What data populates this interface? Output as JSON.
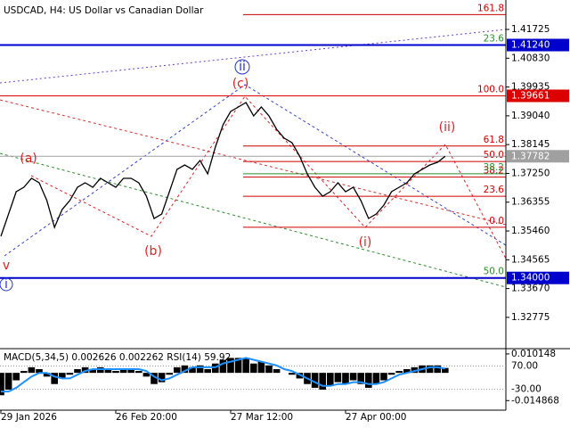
{
  "chart_data": [
    {
      "type": "line",
      "title": "USDCAD, H4:  US Dollar vs Canadian Dollar",
      "categories": [
        "29 Jan 2026",
        null,
        null,
        null,
        null,
        null,
        null,
        null,
        null,
        null,
        null,
        null,
        null,
        null,
        null,
        "26 Feb 20:00",
        null,
        null,
        null,
        null,
        null,
        null,
        null,
        null,
        null,
        null,
        null,
        null,
        null,
        null,
        "27 Mar 12:00",
        null,
        null,
        null,
        null,
        null,
        null,
        null,
        null,
        null,
        null,
        null,
        null,
        null,
        null,
        "27 Apr 00:00",
        null,
        null,
        null,
        null,
        null,
        null,
        null,
        null,
        null,
        null,
        null,
        null,
        null
      ],
      "series": [
        {
          "color": "#000000",
          "values": [
            1.35296,
            1.35989,
            1.36682,
            1.3682,
            1.37097,
            1.36959,
            1.36405,
            1.35573,
            1.36128,
            1.36405,
            1.3682,
            1.36959,
            1.3682,
            1.37097,
            1.36959,
            1.3682,
            1.37097,
            1.37097,
            1.36959,
            1.36543,
            1.3585,
            1.35989,
            1.36682,
            1.37375,
            1.37513,
            1.37375,
            1.37652,
            1.37236,
            1.38067,
            1.3876,
            1.39176,
            1.39314,
            1.39453,
            1.39037,
            1.39314,
            1.39037,
            1.38621,
            1.38344,
            1.38206,
            1.3779,
            1.37236,
            1.3682,
            1.36543,
            1.36682,
            1.36959,
            1.36682,
            1.3682,
            1.36405,
            1.3585,
            1.35989,
            1.36266,
            1.36682,
            1.3682,
            1.36959,
            1.37236,
            1.37375,
            1.37513,
            1.37596,
            1.37782
          ]
        }
      ],
      "ylim": [
        1.3183,
        1.4264
      ],
      "yticks": [
        1.41725,
        {
          "value": 1.4083,
          "label": "1.40830"
        },
        1.39935,
        {
          "value": 1.3904,
          "label": "1.39040"
        },
        1.38145,
        {
          "value": 1.3725,
          "label": "1.37250"
        },
        1.36355,
        {
          "value": 1.3546,
          "label": "1.35460"
        },
        1.34565,
        {
          "value": 1.3367,
          "label": "1.33670"
        },
        1.32775
      ],
      "levels": [
        {
          "value": 1.4124,
          "label": "1.41240",
          "color": "#0000cc"
        },
        {
          "value": 1.39661,
          "label": "1.39661",
          "color": "#dd0000"
        },
        {
          "value": 1.37782,
          "label": "1.37782",
          "color": "#a0a0a0"
        },
        {
          "value": 1.34,
          "label": "1.34000",
          "color": "#0000cc"
        }
      ],
      "fib_levels": [
        {
          "label": "161.8",
          "price": 1.42187,
          "color": "#cc0000"
        },
        {
          "label": "100.0",
          "price": 1.39661,
          "color": "#cc0000"
        },
        {
          "label": "61.8",
          "price": 1.381,
          "color": "#cc0000"
        },
        {
          "label": "50.0",
          "price": 1.37618,
          "color": "#cc0000"
        },
        {
          "label": "38.2",
          "price": 1.37135,
          "color": "#cc0000"
        },
        {
          "label": "23.6",
          "price": 1.36539,
          "color": "#cc0000"
        },
        {
          "label": "0.0",
          "price": 1.35574,
          "color": "#cc0000"
        },
        {
          "label": "23.6",
          "price": 1.4124,
          "color": "#2e8b2e"
        },
        {
          "label": "38.2",
          "price": 1.3724,
          "color": "#2e8b2e"
        },
        {
          "label": "50.0",
          "price": 1.34,
          "color": "#2e8b2e"
        }
      ],
      "wave_labels": [
        "(a)",
        "(b)",
        "(c)",
        "ii",
        "v",
        "i",
        "(i)",
        "(ii)"
      ]
    },
    {
      "type": "macd",
      "title": "MACD(5,34,5) 0.002626 0.002262 RSI(14) 59.92",
      "series": [
        {
          "type": "bar",
          "color": "#000000",
          "values": [
            -0.012,
            -0.009,
            -0.004,
            0.001,
            0.003,
            0.002,
            -0.002,
            -0.006,
            -0.003,
            -0.001,
            0.002,
            0.003,
            0.002,
            0.003,
            0.002,
            0.001,
            0.002,
            0.002,
            0.001,
            -0.002,
            -0.006,
            -0.005,
            -0.001,
            0.003,
            0.004,
            0.003,
            0.004,
            0.002,
            0.005,
            0.007,
            0.008,
            0.008,
            0.008,
            0.005,
            0.006,
            0.004,
            0.002,
            0.0,
            -0.001,
            -0.003,
            -0.006,
            -0.008,
            -0.009,
            -0.007,
            -0.005,
            -0.006,
            -0.004,
            -0.006,
            -0.008,
            -0.006,
            -0.004,
            -0.001,
            0.001,
            0.002,
            0.003,
            0.004,
            0.004,
            0.004,
            0.002626
          ]
        },
        {
          "type": "line",
          "color": "#1e90ff",
          "values": [
            -0.01,
            -0.01,
            -0.008,
            -0.005,
            -0.002,
            0.0,
            0.0,
            -0.002,
            -0.003,
            -0.003,
            -0.001,
            0.001,
            0.002,
            0.002,
            0.002,
            0.002,
            0.002,
            0.002,
            0.002,
            0.001,
            -0.002,
            -0.004,
            -0.003,
            -0.001,
            0.001,
            0.003,
            0.003,
            0.003,
            0.003,
            0.005,
            0.006,
            0.007,
            0.008,
            0.007,
            0.006,
            0.005,
            0.004,
            0.002,
            0.001,
            -0.001,
            -0.003,
            -0.005,
            -0.007,
            -0.007,
            -0.006,
            -0.006,
            -0.005,
            -0.005,
            -0.006,
            -0.006,
            -0.005,
            -0.003,
            -0.001,
            0.0,
            0.001,
            0.002,
            0.003,
            0.003,
            0.002262
          ]
        }
      ],
      "ylim": [
        -0.02,
        0.0125
      ],
      "yticks": [
        0.010148,
        -0.014868
      ],
      "y2lim": [
        -118.9,
        140.4
      ],
      "y2ticks": [
        {
          "value": 70,
          "label": "70.00"
        },
        {
          "value": -30,
          "label": "-30.00"
        }
      ]
    }
  ]
}
